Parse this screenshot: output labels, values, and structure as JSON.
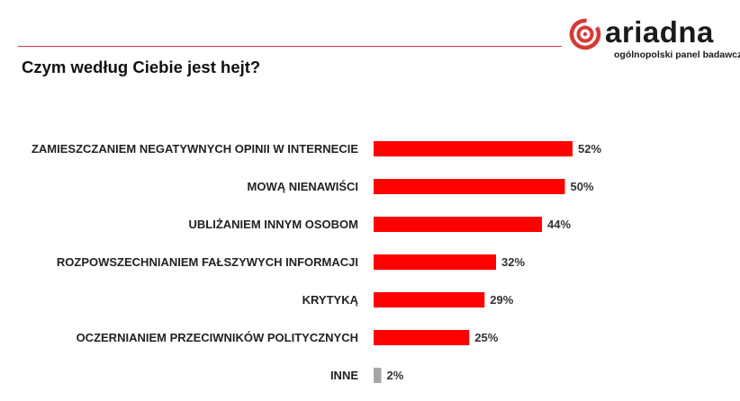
{
  "header": {
    "brand": "ariadna",
    "tagline": "ogólnopolski panel badawczy",
    "title": "Czym według Ciebie jest hejt?"
  },
  "colors": {
    "bar_primary": "#ff0000",
    "bar_other": "#a6a6a6",
    "rule": "#c9413f",
    "logo": "#d63a35"
  },
  "chart_data": {
    "type": "bar",
    "orientation": "horizontal",
    "title": "Czym według Ciebie jest hejt?",
    "categories": [
      "ZAMIESZCZANIEM NEGATYWNYCH OPINII W INTERNECIE",
      "MOWĄ NIENAWIŚCI",
      "UBLIŻANIEM INNYM OSOBOM",
      "ROZPOWSZECHNIANIEM FAŁSZYWYCH INFORMACJI",
      "KRYTYKĄ",
      "OCZERNIANIEM PRZECIWNIKÓW POLITYCZNYCH",
      "INNE"
    ],
    "values": [
      52,
      50,
      44,
      32,
      29,
      25,
      2
    ],
    "value_labels": [
      "52%",
      "50%",
      "44%",
      "32%",
      "29%",
      "25%",
      "2%"
    ],
    "unit": "%",
    "xlim": [
      0,
      100
    ],
    "grid": false,
    "legend": "none"
  }
}
